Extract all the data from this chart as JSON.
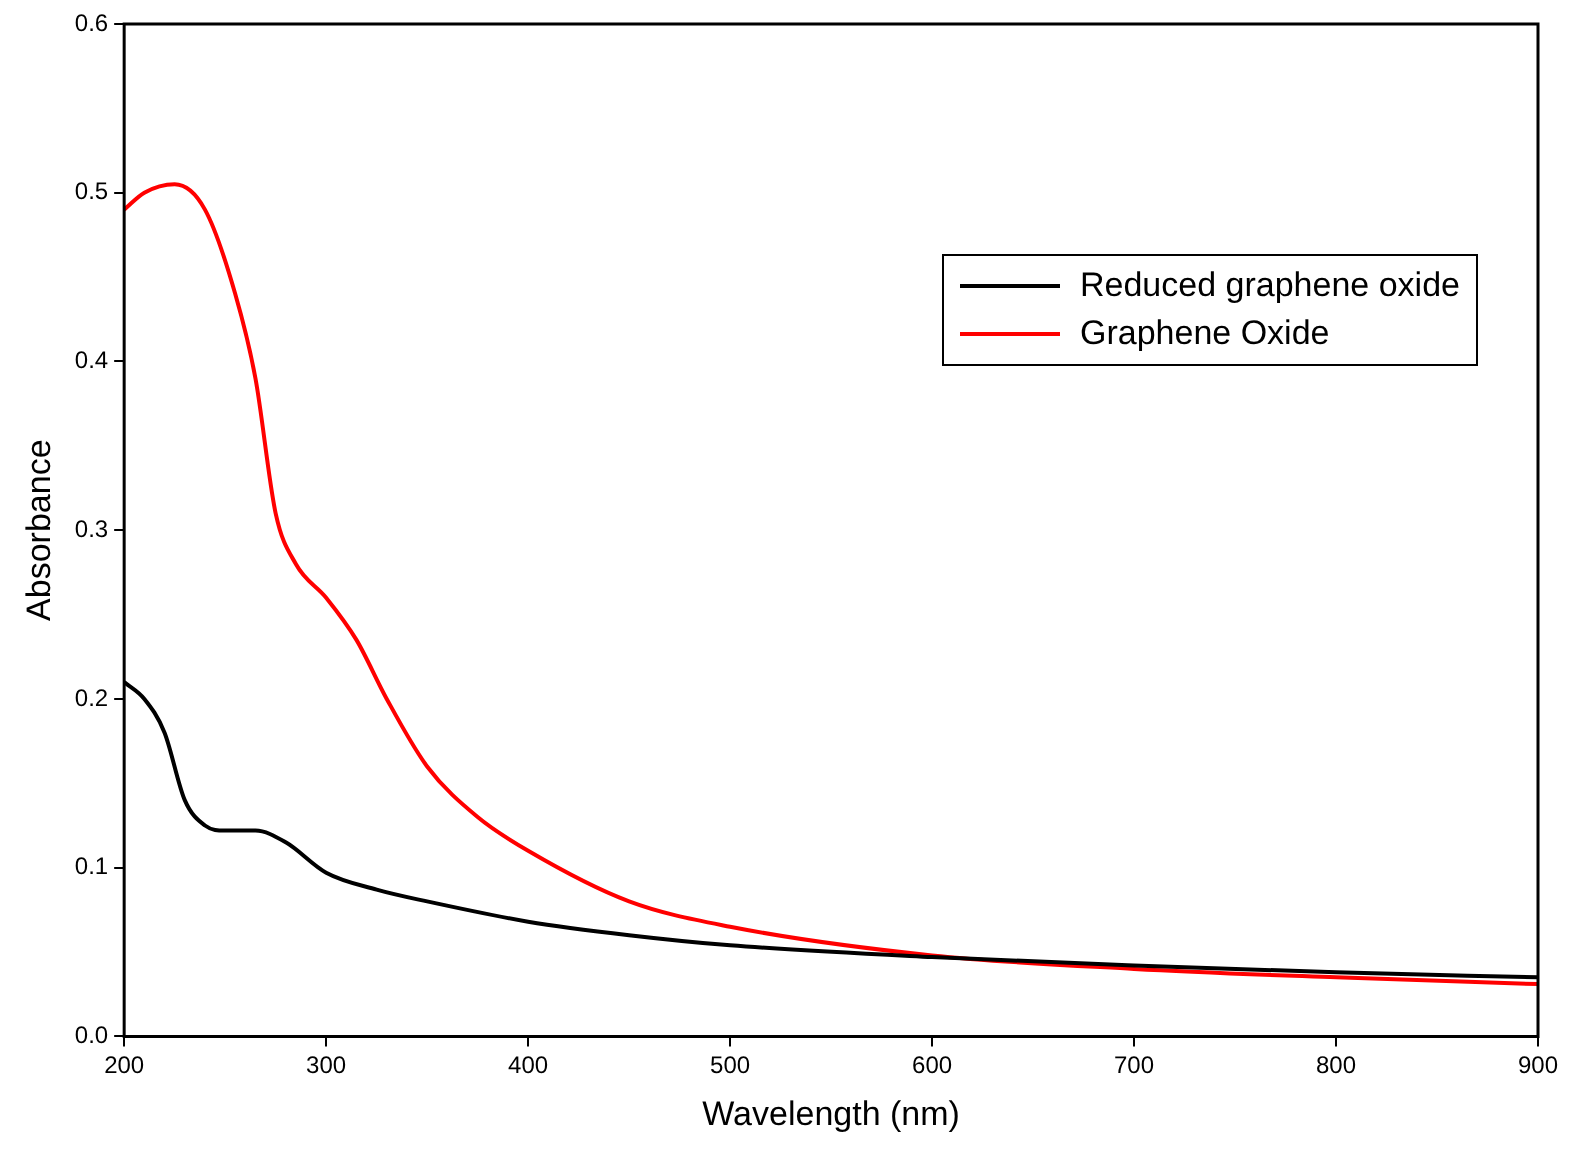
{
  "chart_data": {
    "type": "line",
    "xlabel": "Wavelength (nm)",
    "ylabel": "Absorbance",
    "xlim": [
      200,
      900
    ],
    "xticks": [
      200,
      300,
      400,
      500,
      600,
      700,
      800,
      900
    ],
    "ylim": [
      0,
      0.6
    ],
    "yticks": [
      {
        "value": 0,
        "label": "0.0"
      },
      0.1,
      0.2,
      0.3,
      0.4,
      0.5,
      0.6
    ],
    "grid": false,
    "legend": "top right",
    "marker": "none",
    "line_style": "solid",
    "series": [
      {
        "name": "Reduced graphene oxide",
        "color": "#000000",
        "x": [
          200,
          210,
          220,
          230,
          240,
          250,
          265,
          280,
          300,
          325,
          350,
          400,
          450,
          500,
          600,
          700,
          800,
          900
        ],
        "values": [
          0.21,
          0.2,
          0.18,
          0.14,
          0.125,
          0.122,
          0.122,
          0.115,
          0.097,
          0.087,
          0.08,
          0.068,
          0.06,
          0.054,
          0.047,
          0.042,
          0.038,
          0.035
        ]
      },
      {
        "name": "Graphene Oxide",
        "color": "#ff0000",
        "x": [
          200,
          210,
          225,
          240,
          255,
          265,
          275,
          285,
          300,
          315,
          330,
          350,
          375,
          400,
          450,
          500,
          600,
          700,
          800,
          900
        ],
        "values": [
          0.49,
          0.5,
          0.505,
          0.49,
          0.44,
          0.39,
          0.31,
          0.28,
          0.26,
          0.235,
          0.2,
          0.16,
          0.13,
          0.11,
          0.08,
          0.065,
          0.048,
          0.04,
          0.035,
          0.031
        ]
      }
    ]
  }
}
